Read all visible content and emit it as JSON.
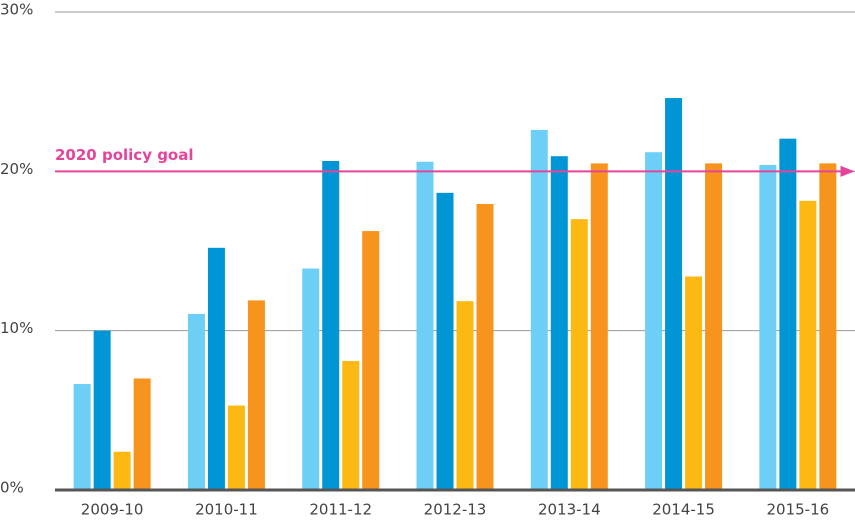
{
  "chart_data": {
    "type": "bar",
    "categories": [
      "2009-10",
      "2010-11",
      "2011-12",
      "2012-13",
      "2013-14",
      "2014-15",
      "2015-16"
    ],
    "series": [
      {
        "color": "#6dcff6",
        "values": [
          6.65,
          11.05,
          13.9,
          20.6,
          22.6,
          21.2,
          20.4
        ]
      },
      {
        "color": "#0096d6",
        "values": [
          10.0,
          15.2,
          20.65,
          18.65,
          20.95,
          24.6,
          22.05
        ]
      },
      {
        "color": "#fdb913",
        "values": [
          2.4,
          5.3,
          8.1,
          11.85,
          17.0,
          13.4,
          18.15
        ]
      },
      {
        "color": "#f7941d",
        "values": [
          7.0,
          11.9,
          16.25,
          17.95,
          20.5,
          20.5,
          20.5
        ]
      }
    ],
    "ylim": [
      0,
      30
    ],
    "yticks": [
      {
        "value": 0,
        "label": "0%"
      },
      {
        "value": 10,
        "label": "10%"
      },
      {
        "value": 20,
        "label": "20%"
      },
      {
        "value": 30,
        "label": "30%"
      }
    ],
    "grid": true,
    "annotation": {
      "text": "2020 policy goal",
      "value": 20,
      "color": "#e6449b"
    }
  }
}
